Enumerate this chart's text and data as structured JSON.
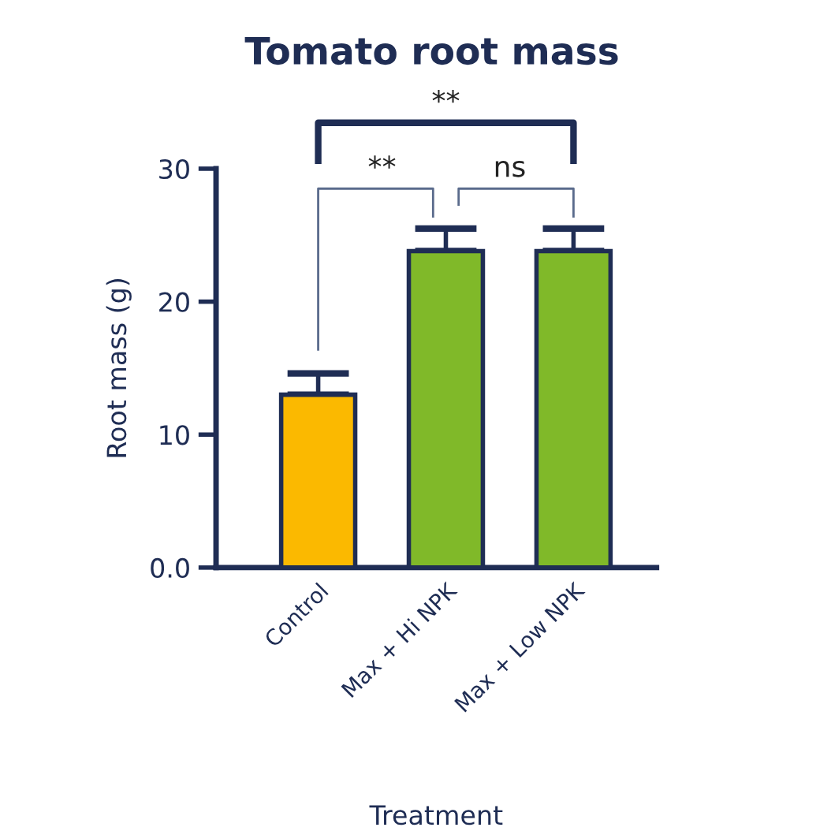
{
  "chart_data": {
    "type": "bar",
    "title": "Tomato root mass",
    "xlabel": "Treatment",
    "ylabel": "Root mass (g)",
    "categories": [
      "Control",
      "Max + Hi NPK",
      "Max + Low NPK"
    ],
    "values": [
      13.0,
      23.8,
      23.8
    ],
    "errors": [
      [
        13.0,
        14.6
      ],
      [
        23.8,
        25.5
      ],
      [
        23.8,
        25.5
      ]
    ],
    "colors": [
      "#fbb900",
      "#80b929",
      "#80b929"
    ],
    "ylim": [
      0,
      30
    ],
    "yticks": [
      {
        "value": 0,
        "label": "0.0"
      },
      10,
      20,
      30
    ],
    "annotations": [
      "**",
      "ns",
      "**"
    ]
  }
}
